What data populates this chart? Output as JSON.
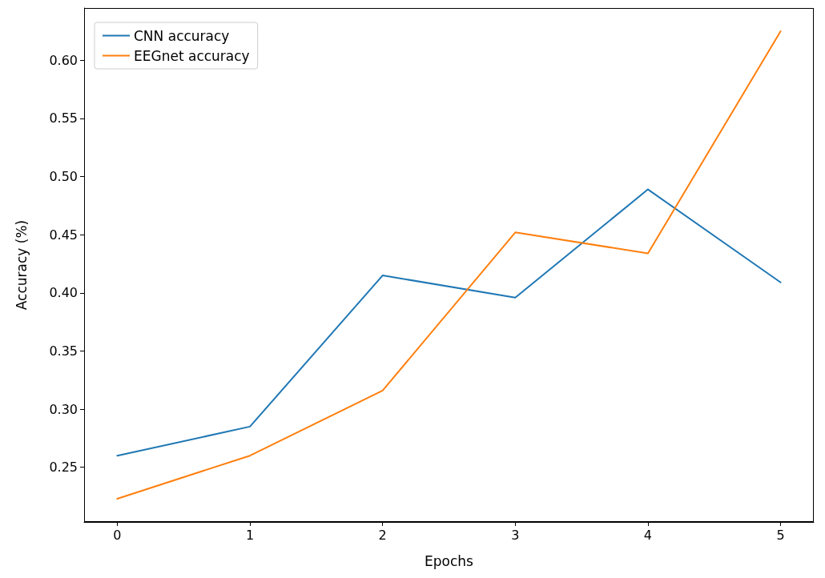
{
  "chart_data": {
    "type": "line",
    "xlabel": "Epochs",
    "ylabel": "Accuracy (%)",
    "x": [
      0,
      1,
      2,
      3,
      4,
      5
    ],
    "series": [
      {
        "name": "CNN accuracy",
        "color": "#1f77b4",
        "values": [
          0.26,
          0.285,
          0.415,
          0.396,
          0.489,
          0.409
        ]
      },
      {
        "name": "EEGnet accuracy",
        "color": "#ff7f0e",
        "values": [
          0.223,
          0.26,
          0.316,
          0.452,
          0.434,
          0.625
        ]
      }
    ],
    "xlim": [
      -0.25,
      5.25
    ],
    "xticks": [
      0,
      1,
      2,
      3,
      4,
      5
    ],
    "ylim": [
      0.203,
      0.645
    ],
    "yticks": [
      {
        "value": 0.25,
        "label": "0.25"
      },
      {
        "value": 0.3,
        "label": "0.30"
      },
      {
        "value": 0.35,
        "label": "0.35"
      },
      {
        "value": 0.4,
        "label": "0.40"
      },
      {
        "value": 0.45,
        "label": "0.45"
      },
      {
        "value": 0.5,
        "label": "0.50"
      },
      {
        "value": 0.55,
        "label": "0.55"
      },
      {
        "value": 0.6,
        "label": "0.60"
      }
    ],
    "grid": false,
    "legend": "top left",
    "marker": "none",
    "line_style": "solid"
  }
}
